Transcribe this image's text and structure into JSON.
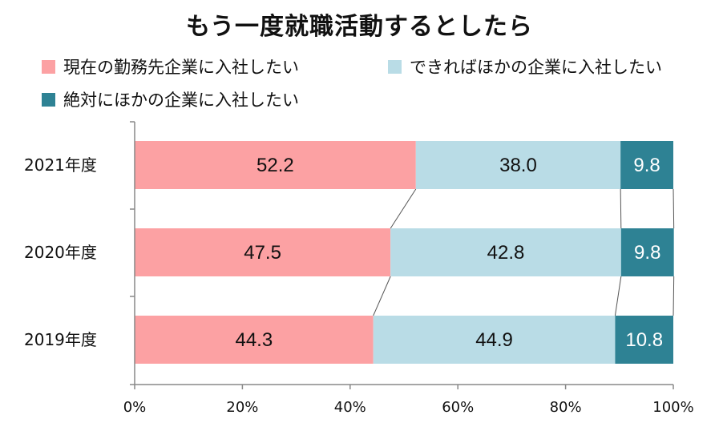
{
  "chart_data": {
    "type": "bar",
    "orientation": "horizontal",
    "stacked": true,
    "title": "もう一度就職活動するとしたら",
    "categories": [
      "2021年度",
      "2020年度",
      "2019年度"
    ],
    "series": [
      {
        "name": "現在の勤務先企業に入社したい",
        "color": "#fca1a3",
        "label_color": "#111111",
        "values": [
          52.2,
          47.5,
          44.3
        ],
        "labels": [
          "52.2",
          "47.5",
          "44.3"
        ]
      },
      {
        "name": "できればほかの企業に入社したい",
        "color": "#b9dce6",
        "label_color": "#111111",
        "values": [
          38.0,
          42.8,
          44.9
        ],
        "labels": [
          "38.0",
          "42.8",
          "44.9"
        ]
      },
      {
        "name": "絶対にほかの企業に入社したい",
        "color": "#2e8294",
        "label_color": "#ffffff",
        "values": [
          9.8,
          9.8,
          10.8
        ],
        "labels": [
          "9.8",
          "9.8",
          "10.8"
        ]
      }
    ],
    "x_ticks": [
      "0%",
      "20%",
      "40%",
      "60%",
      "80%",
      "100%"
    ],
    "xlim": [
      0,
      100
    ],
    "legend_position": "top",
    "series_lines": true
  }
}
